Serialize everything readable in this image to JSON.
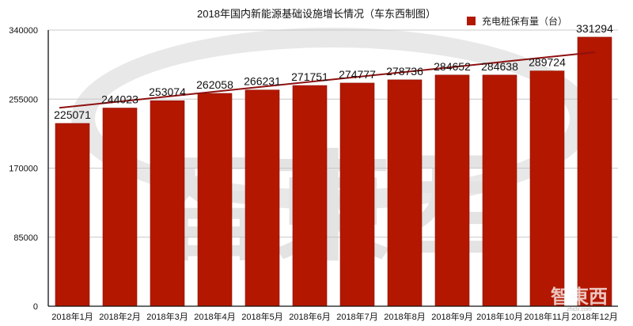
{
  "title": "2018年国内新能源基础设施增长情况（车东西制图）",
  "legend": {
    "label": "充电桩保有量（台）",
    "color": "#B31700"
  },
  "watermark": {
    "text": "智東西",
    "subtext": "zhidx.com"
  },
  "colors": {
    "bar": "#B31700",
    "bar_edge": "#8E1200",
    "trend": "#8E1010",
    "grid": "#C8C8C8",
    "axis": "#111111"
  },
  "chart_data": {
    "type": "bar",
    "title": "2018年国内新能源基础设施增长情况（车东西制图）",
    "xlabel": "",
    "ylabel": "",
    "categories": [
      "2018年1月",
      "2018年2月",
      "2018年3月",
      "2018年4月",
      "2018年5月",
      "2018年6月",
      "2018年7月",
      "2018年8月",
      "2018年9月",
      "2018年10月",
      "2018年11月",
      "2018年12月"
    ],
    "series": [
      {
        "name": "充电桩保有量（台）",
        "values": [
          225071,
          244023,
          253074,
          262058,
          266231,
          271751,
          274777,
          278736,
          284652,
          284638,
          289724,
          331294
        ]
      }
    ],
    "data_labels": [
      "225071",
      "244023",
      "253074",
      "262058",
      "266231",
      "271751",
      "274777",
      "278736",
      "284652",
      "284638",
      "289724",
      "331294"
    ],
    "trendline": {
      "type": "linear",
      "present": true
    },
    "ylim": [
      0,
      340000
    ],
    "yticks": [
      0,
      85000,
      170000,
      255000,
      340000
    ],
    "ytick_labels": [
      "0",
      "85000",
      "170000",
      "255000",
      "340000"
    ],
    "grid": true,
    "legend_position": "top-right"
  }
}
